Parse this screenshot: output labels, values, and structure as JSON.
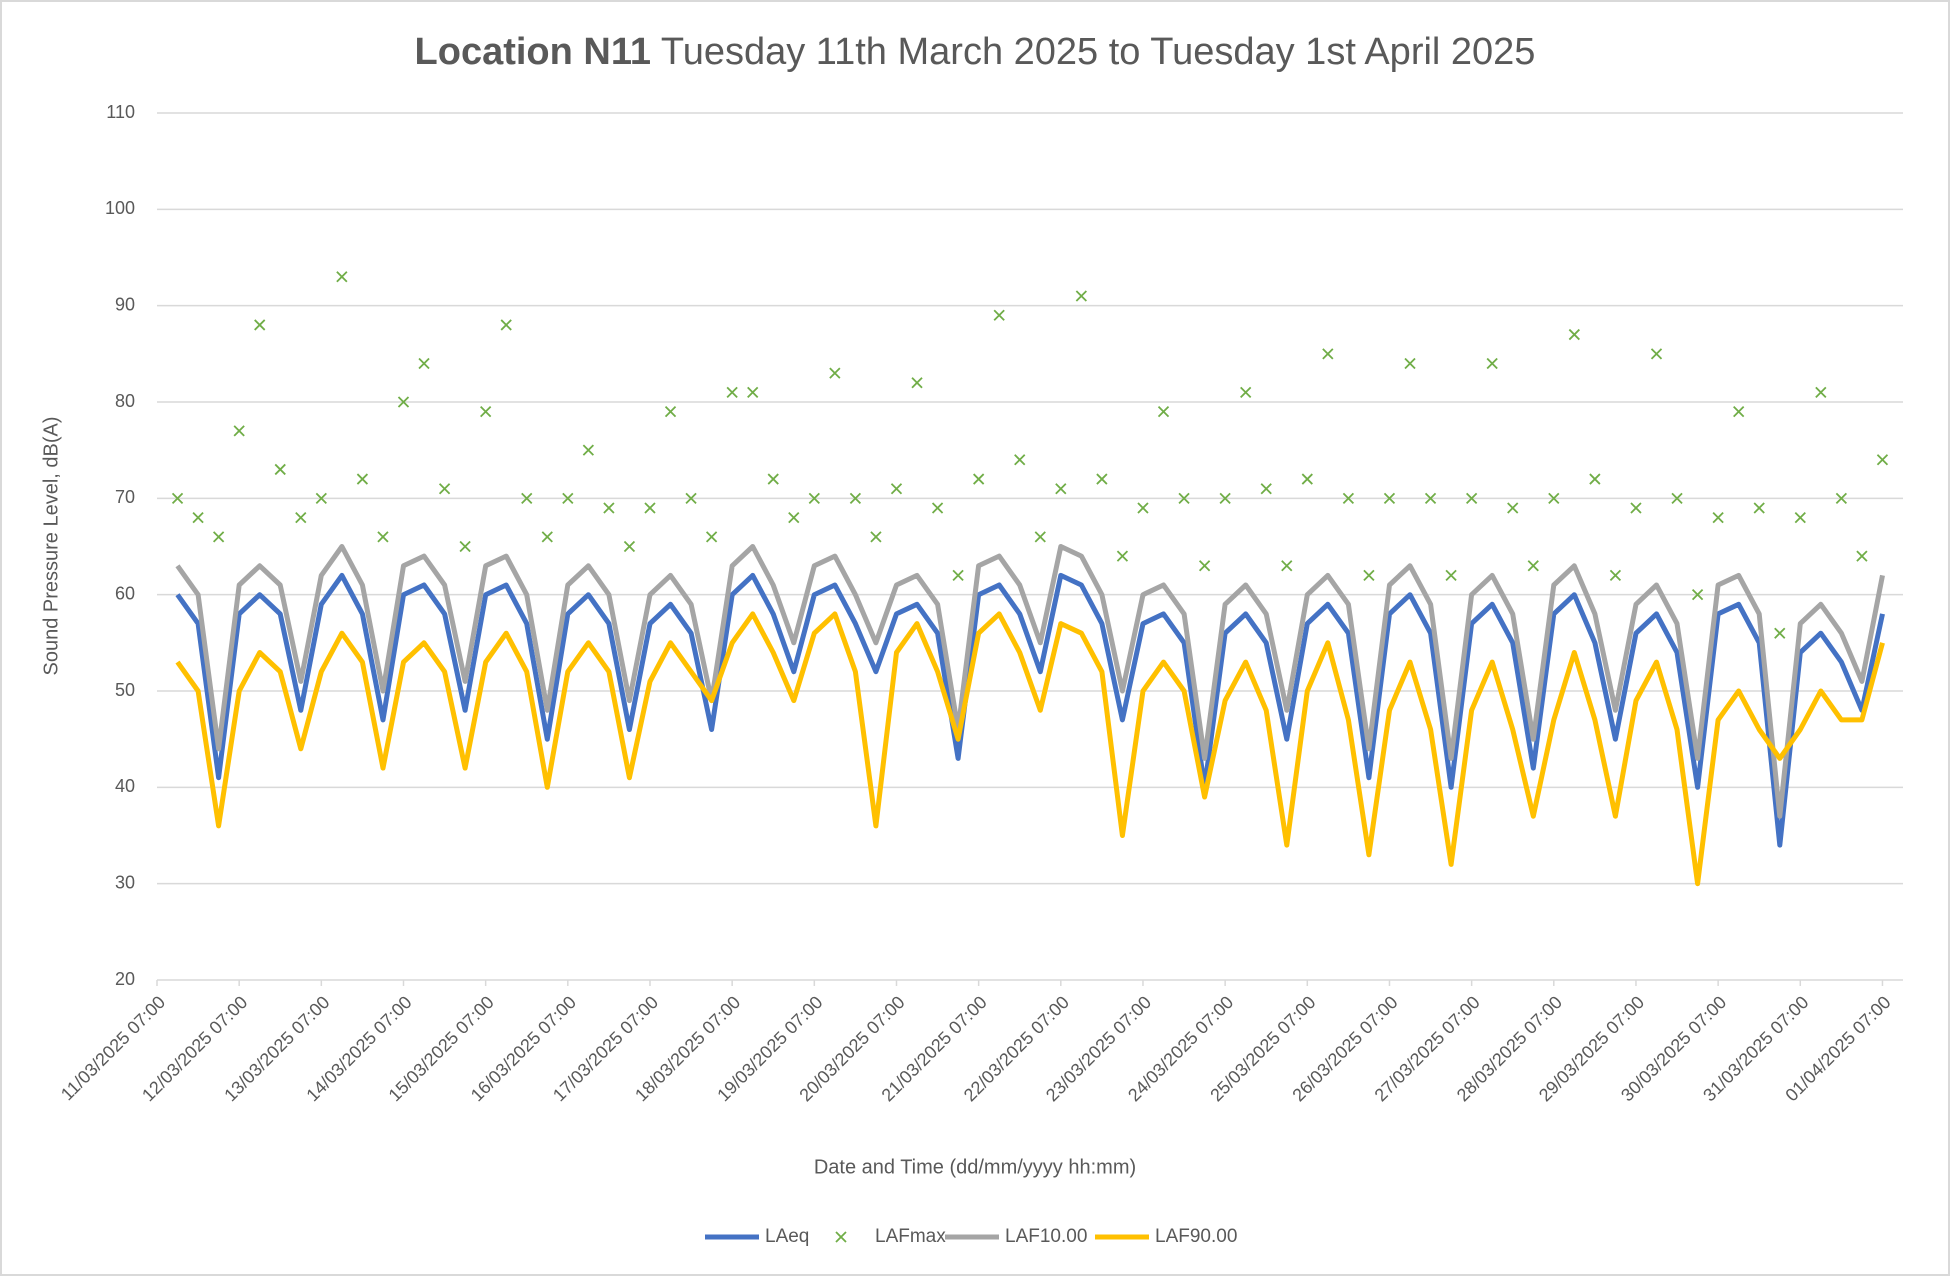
{
  "chart_data": {
    "type": "line",
    "title_bold": "Location N11",
    "title": "Tuesday 11th March 2025 to Tuesday 1st April 2025",
    "x_label": "Date and Time (dd/mm/yyyy hh:mm)",
    "y_label": "Sound Pressure Level, dB(A)",
    "grid": true,
    "legend": "bottom",
    "xlim": [
      "11/03/2025 07:00",
      "01/04/2025 13:00"
    ],
    "xticks": [
      "11/03/2025 07:00",
      "12/03/2025 07:00",
      "13/03/2025 07:00",
      "14/03/2025 07:00",
      "15/03/2025 07:00",
      "16/03/2025 07:00",
      "17/03/2025 07:00",
      "18/03/2025 07:00",
      "19/03/2025 07:00",
      "20/03/2025 07:00",
      "21/03/2025 07:00",
      "22/03/2025 07:00",
      "23/03/2025 07:00",
      "24/03/2025 07:00",
      "25/03/2025 07:00",
      "26/03/2025 07:00",
      "27/03/2025 07:00",
      "28/03/2025 07:00",
      "29/03/2025 07:00",
      "30/03/2025 07:00",
      "31/03/2025 07:00",
      "01/04/2025 07:00"
    ],
    "ylim": [
      20,
      110
    ],
    "yticks": [
      20,
      30,
      40,
      50,
      60,
      70,
      80,
      90,
      100,
      110
    ],
    "x": [
      "11/03/2025 13:00",
      "11/03/2025 19:00",
      "12/03/2025 01:00",
      "12/03/2025 07:00",
      "12/03/2025 13:00",
      "12/03/2025 19:00",
      "13/03/2025 01:00",
      "13/03/2025 07:00",
      "13/03/2025 13:00",
      "13/03/2025 19:00",
      "14/03/2025 01:00",
      "14/03/2025 07:00",
      "14/03/2025 13:00",
      "14/03/2025 19:00",
      "15/03/2025 01:00",
      "15/03/2025 07:00",
      "15/03/2025 13:00",
      "15/03/2025 19:00",
      "16/03/2025 01:00",
      "16/03/2025 07:00",
      "16/03/2025 13:00",
      "16/03/2025 19:00",
      "17/03/2025 01:00",
      "17/03/2025 07:00",
      "17/03/2025 13:00",
      "17/03/2025 19:00",
      "18/03/2025 01:00",
      "18/03/2025 07:00",
      "18/03/2025 13:00",
      "18/03/2025 19:00",
      "19/03/2025 01:00",
      "19/03/2025 07:00",
      "19/03/2025 13:00",
      "19/03/2025 19:00",
      "20/03/2025 01:00",
      "20/03/2025 07:00",
      "20/03/2025 13:00",
      "20/03/2025 19:00",
      "21/03/2025 01:00",
      "21/03/2025 07:00",
      "21/03/2025 13:00",
      "21/03/2025 19:00",
      "22/03/2025 01:00",
      "22/03/2025 07:00",
      "22/03/2025 13:00",
      "22/03/2025 19:00",
      "23/03/2025 01:00",
      "23/03/2025 07:00",
      "23/03/2025 13:00",
      "23/03/2025 19:00",
      "24/03/2025 01:00",
      "24/03/2025 07:00",
      "24/03/2025 13:00",
      "24/03/2025 19:00",
      "25/03/2025 01:00",
      "25/03/2025 07:00",
      "25/03/2025 13:00",
      "25/03/2025 19:00",
      "26/03/2025 01:00",
      "26/03/2025 07:00",
      "26/03/2025 13:00",
      "26/03/2025 19:00",
      "27/03/2025 01:00",
      "27/03/2025 07:00",
      "27/03/2025 13:00",
      "27/03/2025 19:00",
      "28/03/2025 01:00",
      "28/03/2025 07:00",
      "28/03/2025 13:00",
      "28/03/2025 19:00",
      "29/03/2025 01:00",
      "29/03/2025 07:00",
      "29/03/2025 13:00",
      "29/03/2025 19:00",
      "30/03/2025 01:00",
      "30/03/2025 07:00",
      "30/03/2025 13:00",
      "30/03/2025 19:00",
      "31/03/2025 01:00",
      "31/03/2025 07:00",
      "31/03/2025 13:00",
      "31/03/2025 19:00",
      "01/04/2025 01:00",
      "01/04/2025 07:00"
    ],
    "series": [
      {
        "name": "LAeq",
        "type": "line",
        "color": "#4472c4",
        "values": [
          60,
          57,
          41,
          58,
          60,
          58,
          48,
          59,
          62,
          58,
          47,
          60,
          61,
          58,
          48,
          60,
          61,
          57,
          45,
          58,
          60,
          57,
          46,
          57,
          59,
          56,
          46,
          60,
          62,
          58,
          52,
          60,
          61,
          57,
          52,
          58,
          59,
          56,
          43,
          60,
          61,
          58,
          52,
          62,
          61,
          57,
          47,
          57,
          58,
          55,
          40,
          56,
          58,
          55,
          45,
          57,
          59,
          56,
          41,
          58,
          60,
          56,
          40,
          57,
          59,
          55,
          42,
          58,
          60,
          55,
          45,
          56,
          58,
          54,
          40,
          58,
          59,
          55,
          34,
          54,
          56,
          53,
          48,
          58
        ]
      },
      {
        "name": "LAFmax",
        "type": "scatter",
        "color": "#70ad47",
        "values": [
          70,
          68,
          66,
          77,
          88,
          73,
          68,
          70,
          93,
          72,
          66,
          80,
          84,
          71,
          65,
          79,
          88,
          70,
          66,
          70,
          75,
          69,
          65,
          69,
          79,
          70,
          66,
          81,
          81,
          72,
          68,
          70,
          83,
          70,
          66,
          71,
          82,
          69,
          62,
          72,
          89,
          74,
          66,
          71,
          91,
          72,
          64,
          69,
          79,
          70,
          63,
          70,
          81,
          71,
          63,
          72,
          85,
          70,
          62,
          70,
          84,
          70,
          62,
          70,
          84,
          69,
          63,
          70,
          87,
          72,
          62,
          69,
          85,
          70,
          60,
          68,
          79,
          69,
          56,
          68,
          81,
          70,
          64,
          74
        ]
      },
      {
        "name": "LAF10.00",
        "type": "line",
        "color": "#a5a5a5",
        "values": [
          63,
          60,
          44,
          61,
          63,
          61,
          51,
          62,
          65,
          61,
          50,
          63,
          64,
          61,
          51,
          63,
          64,
          60,
          48,
          61,
          63,
          60,
          49,
          60,
          62,
          59,
          49,
          63,
          65,
          61,
          55,
          63,
          64,
          60,
          55,
          61,
          62,
          59,
          46,
          63,
          64,
          61,
          55,
          65,
          64,
          60,
          50,
          60,
          61,
          58,
          43,
          59,
          61,
          58,
          48,
          60,
          62,
          59,
          44,
          61,
          63,
          59,
          43,
          60,
          62,
          58,
          45,
          61,
          63,
          58,
          48,
          59,
          61,
          57,
          43,
          61,
          62,
          58,
          37,
          57,
          59,
          56,
          51,
          62
        ]
      },
      {
        "name": "LAF90.00",
        "type": "line",
        "color": "#ffc000",
        "values": [
          53,
          50,
          36,
          50,
          54,
          52,
          44,
          52,
          56,
          53,
          42,
          53,
          55,
          52,
          42,
          53,
          56,
          52,
          40,
          52,
          55,
          52,
          41,
          51,
          55,
          52,
          49,
          55,
          58,
          54,
          49,
          56,
          58,
          52,
          36,
          54,
          57,
          52,
          45,
          56,
          58,
          54,
          48,
          57,
          56,
          52,
          35,
          50,
          53,
          50,
          39,
          49,
          53,
          48,
          34,
          50,
          55,
          47,
          33,
          48,
          53,
          46,
          32,
          48,
          53,
          46,
          37,
          47,
          54,
          47,
          37,
          49,
          53,
          46,
          30,
          47,
          50,
          46,
          43,
          46,
          50,
          47,
          47,
          55
        ]
      }
    ]
  }
}
